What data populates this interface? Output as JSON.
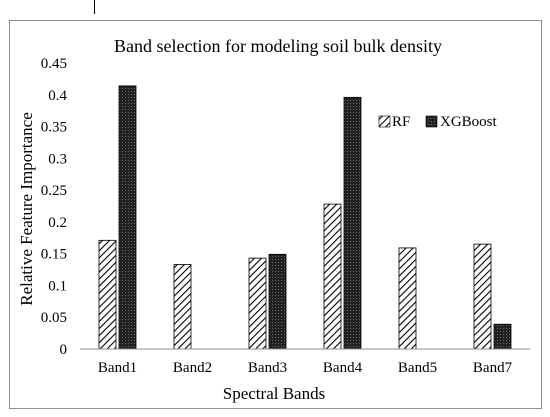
{
  "chart_data": {
    "type": "bar",
    "title": "Band selection for modeling soil bulk density",
    "xlabel": "Spectral Bands",
    "ylabel": "Relative Feature Importance",
    "categories": [
      "Band1",
      "Band2",
      "Band3",
      "Band4",
      "Band5",
      "Band7"
    ],
    "ylim": [
      0,
      0.45
    ],
    "yticks": [
      "0",
      "0.05",
      "0.1",
      "0.15",
      "0.2",
      "0.25",
      "0.3",
      "0.35",
      "0.4",
      "0.45"
    ],
    "ytick_values": [
      0,
      0.05,
      0.1,
      0.15,
      0.2,
      0.25,
      0.3,
      0.35,
      0.4,
      0.45
    ],
    "grid": false,
    "legend_position": "right",
    "series": [
      {
        "name": "RF",
        "values": [
          0.171,
          0.133,
          0.143,
          0.228,
          0.159,
          0.165
        ],
        "pattern": "diagonal-hatch",
        "color": "#000000"
      },
      {
        "name": "XGBoost",
        "values": [
          0.414,
          0,
          0.149,
          0.396,
          0,
          0.039
        ],
        "pattern": "dense-dots",
        "color": "#1a1a1a"
      }
    ]
  }
}
